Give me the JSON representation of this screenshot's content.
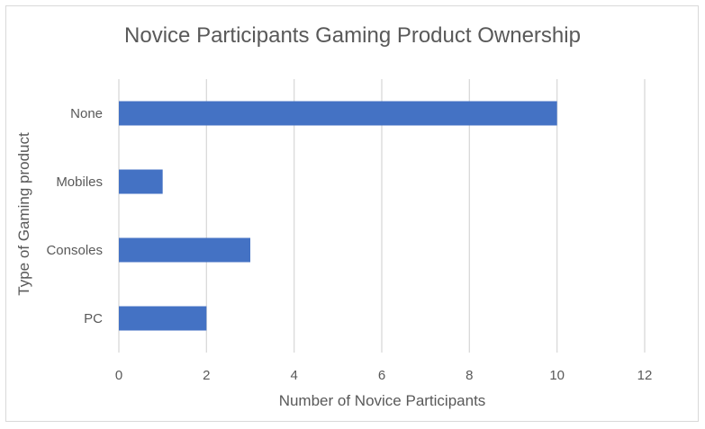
{
  "chart_data": {
    "type": "bar",
    "orientation": "horizontal",
    "title": "Novice Participants Gaming Product Ownership",
    "xlabel": "Number of Novice Participants",
    "ylabel": "Type of Gaming product",
    "categories": [
      "None",
      "Mobiles",
      "Consoles",
      "PC"
    ],
    "values": [
      10,
      1,
      3,
      2
    ],
    "xlim": [
      0,
      12
    ],
    "xticks": [
      "0",
      "2",
      "4",
      "6",
      "8",
      "10",
      "12"
    ],
    "grid": "vertical",
    "legend": "none",
    "bar_color": "#4472c4",
    "grid_color": "#d9d9d9"
  }
}
